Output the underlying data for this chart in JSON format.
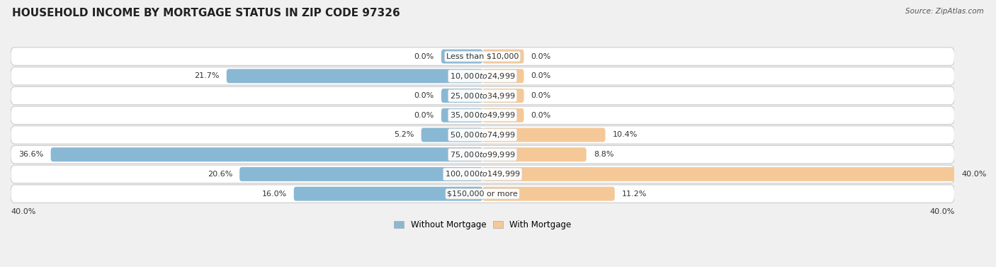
{
  "title": "HOUSEHOLD INCOME BY MORTGAGE STATUS IN ZIP CODE 97326",
  "source": "Source: ZipAtlas.com",
  "categories": [
    "Less than $10,000",
    "$10,000 to $24,999",
    "$25,000 to $34,999",
    "$35,000 to $49,999",
    "$50,000 to $74,999",
    "$75,000 to $99,999",
    "$100,000 to $149,999",
    "$150,000 or more"
  ],
  "without_mortgage": [
    0.0,
    21.7,
    0.0,
    0.0,
    5.2,
    36.6,
    20.6,
    16.0
  ],
  "with_mortgage": [
    0.0,
    0.0,
    0.0,
    0.0,
    10.4,
    8.8,
    40.0,
    11.2
  ],
  "max_val": 40.0,
  "min_bar": 3.5,
  "color_without": "#89b8d4",
  "color_with": "#f5c898",
  "title_fontsize": 11,
  "label_fontsize": 8.0,
  "cat_fontsize": 8.0,
  "legend_fontsize": 8.5
}
